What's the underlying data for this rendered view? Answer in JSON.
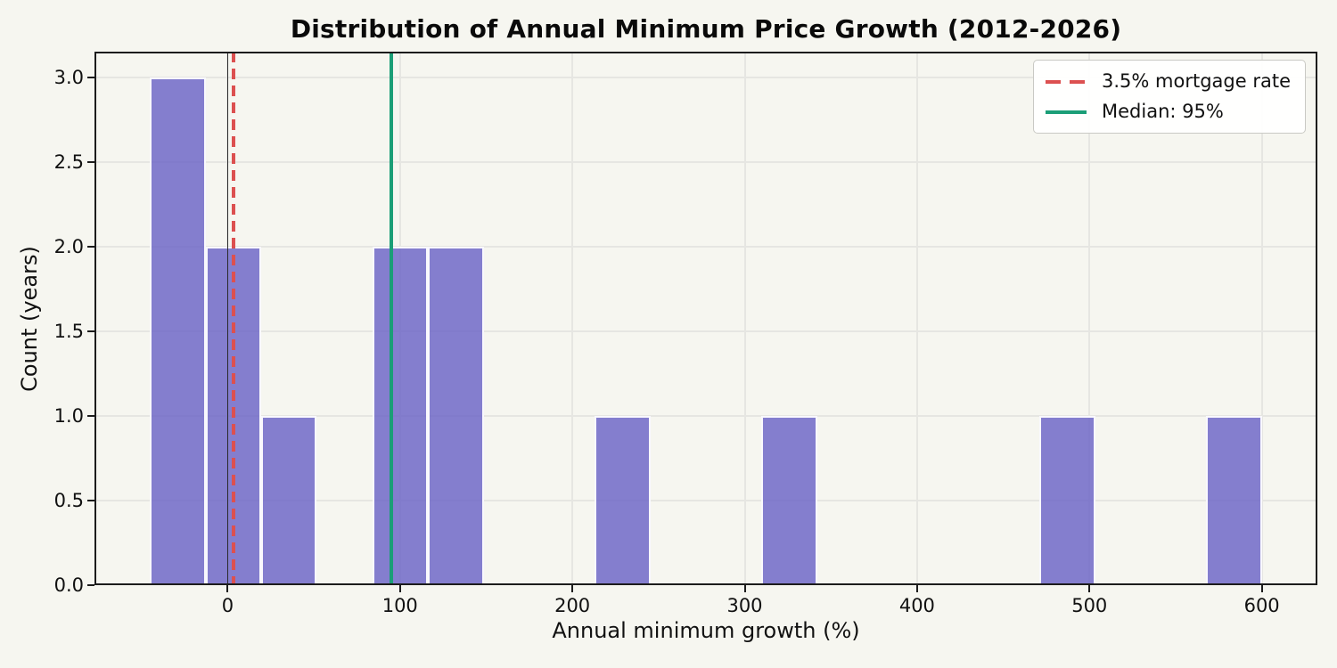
{
  "chart_data": {
    "type": "bar",
    "subtype": "histogram",
    "title": "Distribution of Annual Minimum Price Growth (2012-2026)",
    "xlabel": "Annual minimum growth (%)",
    "ylabel": "Count (years)",
    "bin_start": -45,
    "bin_width": 32.25,
    "bin_counts": [
      3,
      2,
      1,
      0,
      2,
      2,
      0,
      0,
      1,
      0,
      0,
      1,
      0,
      0,
      0,
      0,
      1,
      0,
      0,
      1
    ],
    "total_count": 14,
    "xlim": [
      -77.25,
      632.25
    ],
    "ylim": [
      0,
      3.15
    ],
    "x_ticks": [
      0,
      100,
      200,
      300,
      400,
      500,
      600
    ],
    "x_tick_labels": [
      "0",
      "100",
      "200",
      "300",
      "400",
      "500",
      "600"
    ],
    "y_ticks": [
      0.0,
      0.5,
      1.0,
      1.5,
      2.0,
      2.5,
      3.0
    ],
    "y_tick_labels": [
      "0.0",
      "0.5",
      "1.0",
      "1.5",
      "2.0",
      "2.5",
      "3.0"
    ],
    "grid": true,
    "legend_position": "upper right",
    "reference_lines": [
      {
        "id": "zero-line",
        "x": 0,
        "color": "#2B2B2B",
        "style": "solid",
        "width": 1.5,
        "label": ""
      },
      {
        "id": "mortgage-rate-line",
        "x": 3.5,
        "color": "#DC5050",
        "style": "dashed",
        "width": 4,
        "label": "3.5% mortgage rate"
      },
      {
        "id": "median-line",
        "x": 95,
        "color": "#1B9E77",
        "style": "solid",
        "width": 4,
        "label": "Median: 95%"
      }
    ],
    "legend": {
      "entries": [
        {
          "label": "3.5% mortgage rate",
          "color": "#DC5050",
          "style": "dashed"
        },
        {
          "label": "Median: 95%",
          "color": "#1B9E77",
          "style": "solid"
        }
      ]
    }
  },
  "colors": {
    "background": "#F6F6F0",
    "bar_fill": "#6860C5",
    "bar_alpha": 0.8,
    "bar_edge": "#FFFFFF",
    "grid": "#E6E6E2",
    "spine": "#1C1C1C",
    "text": "#111111",
    "mortgage_line": "#DC5050",
    "median_line": "#1B9E77",
    "legend_border": "#C9C9C4"
  }
}
